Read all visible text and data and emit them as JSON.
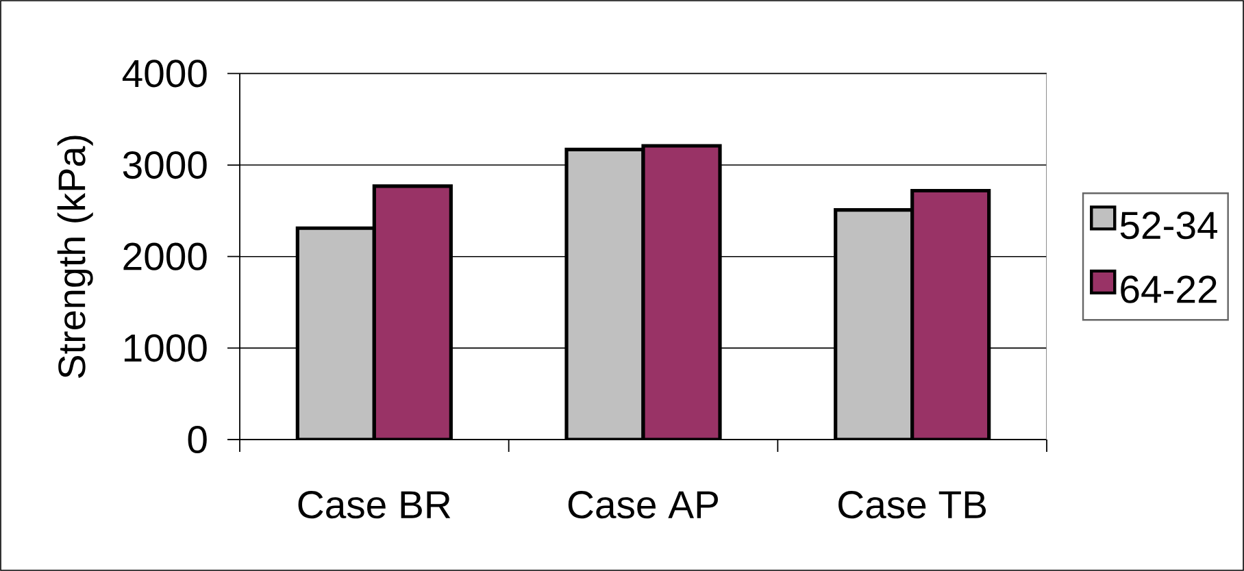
{
  "chart_data": {
    "type": "bar",
    "ylabel": "Strength (kPa)",
    "categories": [
      "Case BR",
      "Case AP",
      "Case TB"
    ],
    "series": [
      {
        "name": "52-34",
        "color": "#c0c0c0",
        "values": [
          2310,
          3170,
          2510
        ]
      },
      {
        "name": "64-22",
        "color": "#993366",
        "values": [
          2770,
          3210,
          2720
        ]
      }
    ],
    "ylim": [
      0,
      4000
    ],
    "yticks": [
      0,
      1000,
      2000,
      3000,
      4000
    ],
    "grid": "y",
    "legend": "right"
  }
}
